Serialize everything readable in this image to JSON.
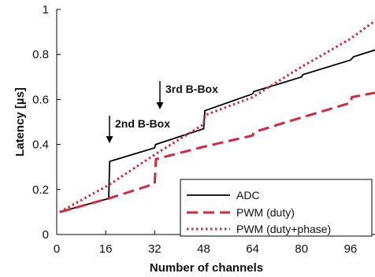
{
  "chart_data": {
    "type": "line",
    "title": "",
    "xlabel": "Number of channels",
    "ylabel": "Latency [µs]",
    "xlim": [
      0,
      104
    ],
    "ylim": [
      0,
      1
    ],
    "x_ticks": [
      "0",
      "16",
      "32",
      "48",
      "64",
      "80",
      "96"
    ],
    "y_ticks": [
      "0",
      "0.2",
      "0.4",
      "0.6",
      "0.8",
      "1"
    ],
    "grid": false,
    "legend_position": "bottom-right",
    "series": [
      {
        "name": "ADC",
        "color": "#000000",
        "style": "solid",
        "x": [
          1,
          17,
          17.3,
          32,
          32.3,
          48,
          48.4,
          64,
          64.4,
          80,
          80.4,
          96,
          97,
          104
        ],
        "y": [
          0.1,
          0.16,
          0.325,
          0.385,
          0.4,
          0.47,
          0.55,
          0.625,
          0.635,
          0.7,
          0.71,
          0.775,
          0.79,
          0.82
        ]
      },
      {
        "name": "PWM (duty)",
        "color": "#d7263d",
        "style": "dashed",
        "x": [
          1,
          17,
          32,
          32.4,
          48,
          64,
          64.4,
          80,
          96,
          96.4,
          104
        ],
        "y": [
          0.1,
          0.16,
          0.225,
          0.335,
          0.39,
          0.44,
          0.455,
          0.52,
          0.585,
          0.61,
          0.63
        ]
      },
      {
        "name": "PWM (duty+phase)",
        "color": "#d7263d",
        "style": "dotted",
        "x": [
          1,
          17,
          32,
          48,
          48.4,
          64,
          80,
          96,
          104
        ],
        "y": [
          0.1,
          0.22,
          0.355,
          0.49,
          0.53,
          0.61,
          0.745,
          0.87,
          0.95
        ]
      }
    ],
    "annotations": [
      {
        "text": "2nd B-Box",
        "x": 17,
        "y": 0.34
      },
      {
        "text": "3rd B-Box",
        "x": 32,
        "y": 0.415
      }
    ]
  }
}
